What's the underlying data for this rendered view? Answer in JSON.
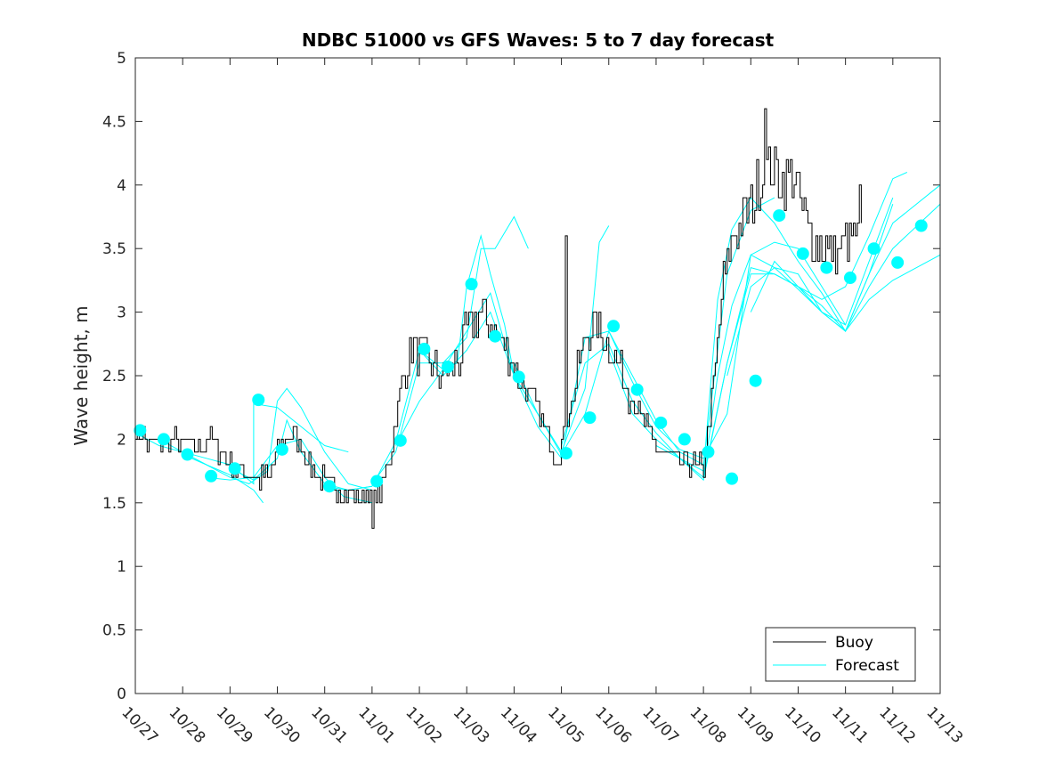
{
  "chart_data": {
    "type": "line",
    "title": "NDBC 51000 vs GFS Waves: 5 to 7 day forecast",
    "xlabel": "",
    "ylabel": "Wave height, m",
    "xlim": [
      0,
      17
    ],
    "ylim": [
      0,
      5
    ],
    "x_unit": "days since 10/27",
    "x_ticks": [
      0,
      1,
      2,
      3,
      4,
      5,
      6,
      7,
      8,
      9,
      10,
      11,
      12,
      13,
      14,
      15,
      16,
      17
    ],
    "x_tick_labels": [
      "10/27",
      "10/28",
      "10/29",
      "10/30",
      "10/31",
      "11/01",
      "11/02",
      "11/03",
      "11/04",
      "11/05",
      "11/06",
      "11/07",
      "11/08",
      "11/09",
      "11/10",
      "11/11",
      "11/12",
      "11/13"
    ],
    "y_ticks": [
      0,
      0.5,
      1,
      1.5,
      2,
      2.5,
      3,
      3.5,
      4,
      4.5,
      5
    ],
    "y_tick_labels": [
      "0",
      "0.5",
      "1",
      "1.5",
      "2",
      "2.5",
      "3",
      "3.5",
      "4",
      "4.5",
      "5"
    ],
    "colors": {
      "buoy": "#000000",
      "forecast": "#00ffff"
    },
    "legend": {
      "position": "bottom-right",
      "entries": [
        "Buoy",
        "Forecast"
      ]
    },
    "buoy_anchors": [
      [
        0.0,
        2.05
      ],
      [
        0.3,
        1.97
      ],
      [
        0.8,
        1.98
      ],
      [
        1.2,
        1.95
      ],
      [
        1.6,
        2.0
      ],
      [
        2.0,
        1.8
      ],
      [
        2.4,
        1.72
      ],
      [
        2.8,
        1.68
      ],
      [
        3.0,
        1.9
      ],
      [
        3.2,
        2.05
      ],
      [
        3.5,
        1.95
      ],
      [
        3.8,
        1.72
      ],
      [
        4.2,
        1.62
      ],
      [
        4.8,
        1.56
      ],
      [
        5.05,
        1.55
      ],
      [
        5.2,
        1.62
      ],
      [
        5.4,
        1.9
      ],
      [
        5.6,
        2.4
      ],
      [
        5.8,
        2.72
      ],
      [
        6.1,
        2.65
      ],
      [
        6.4,
        2.5
      ],
      [
        6.8,
        2.6
      ],
      [
        7.0,
        2.85
      ],
      [
        7.3,
        3.0
      ],
      [
        7.7,
        2.8
      ],
      [
        8.0,
        2.55
      ],
      [
        8.4,
        2.3
      ],
      [
        8.7,
        2.05
      ],
      [
        8.9,
        1.85
      ],
      [
        9.1,
        2.1
      ],
      [
        9.5,
        2.8
      ],
      [
        9.7,
        2.9
      ],
      [
        10.0,
        2.75
      ],
      [
        10.3,
        2.5
      ],
      [
        10.6,
        2.25
      ],
      [
        10.9,
        2.0
      ],
      [
        11.3,
        1.85
      ],
      [
        11.7,
        1.8
      ],
      [
        12.0,
        1.78
      ],
      [
        12.2,
        2.4
      ],
      [
        12.4,
        3.2
      ],
      [
        12.6,
        3.6
      ],
      [
        12.9,
        3.75
      ],
      [
        13.1,
        3.95
      ],
      [
        13.35,
        4.15
      ],
      [
        13.6,
        4.05
      ],
      [
        13.9,
        4.05
      ],
      [
        14.2,
        3.65
      ],
      [
        14.6,
        3.5
      ],
      [
        14.9,
        3.48
      ],
      [
        15.2,
        3.6
      ],
      [
        15.35,
        3.55
      ]
    ],
    "buoy_spikes": [
      [
        9.09,
        3.6
      ],
      [
        5.0,
        1.3
      ],
      [
        13.3,
        4.6
      ],
      [
        15.28,
        4.0
      ]
    ],
    "forecast_runs": [
      [
        [
          0,
          2.05
        ],
        [
          0.5,
          1.95
        ],
        [
          1.0,
          1.9
        ],
        [
          1.5,
          1.85
        ],
        [
          2.0,
          1.8
        ],
        [
          2.5,
          1.65
        ],
        [
          2.5,
          2.28
        ],
        [
          3.0,
          2.25
        ],
        [
          3.5,
          2.1
        ],
        [
          4.0,
          1.95
        ],
        [
          4.5,
          1.9
        ]
      ],
      [
        [
          0.5,
          2.0
        ],
        [
          1.0,
          1.9
        ],
        [
          1.5,
          1.8
        ],
        [
          2.0,
          1.72
        ],
        [
          2.5,
          1.6
        ],
        [
          2.7,
          1.5
        ]
      ],
      [
        [
          1.0,
          1.88
        ],
        [
          1.5,
          1.8
        ],
        [
          2.0,
          1.7
        ],
        [
          2.4,
          1.65
        ],
        [
          2.8,
          1.75
        ],
        [
          3.0,
          2.3
        ],
        [
          3.2,
          2.4
        ],
        [
          3.5,
          2.25
        ],
        [
          4.0,
          1.9
        ],
        [
          4.5,
          1.65
        ],
        [
          5.0,
          1.6
        ]
      ],
      [
        [
          1.5,
          1.7
        ],
        [
          2.0,
          1.68
        ],
        [
          2.5,
          1.7
        ],
        [
          3.0,
          1.95
        ],
        [
          3.5,
          2.0
        ],
        [
          4.0,
          1.7
        ],
        [
          4.4,
          1.55
        ],
        [
          5.0,
          1.5
        ]
      ],
      [
        [
          2.0,
          1.77
        ],
        [
          2.5,
          1.68
        ],
        [
          3.0,
          1.85
        ],
        [
          3.2,
          2.15
        ],
        [
          3.5,
          1.9
        ],
        [
          4.0,
          1.65
        ],
        [
          4.5,
          1.6
        ],
        [
          5.0,
          1.63
        ]
      ],
      [
        [
          4.0,
          1.63
        ],
        [
          4.5,
          1.6
        ],
        [
          5.0,
          1.63
        ],
        [
          5.5,
          1.98
        ],
        [
          6.0,
          2.7
        ],
        [
          6.5,
          2.55
        ],
        [
          6.8,
          2.6
        ],
        [
          7.0,
          3.2
        ],
        [
          7.3,
          3.6
        ],
        [
          7.5,
          3.3
        ],
        [
          7.8,
          2.9
        ],
        [
          8.0,
          2.5
        ],
        [
          8.5,
          2.2
        ]
      ],
      [
        [
          5.0,
          1.65
        ],
        [
          5.5,
          1.9
        ],
        [
          6.0,
          2.6
        ],
        [
          6.5,
          2.6
        ],
        [
          7.0,
          2.8
        ],
        [
          7.3,
          3.5
        ],
        [
          7.6,
          3.5
        ],
        [
          8.0,
          3.75
        ],
        [
          8.3,
          3.5
        ]
      ],
      [
        [
          5.5,
          1.95
        ],
        [
          6.0,
          2.3
        ],
        [
          6.5,
          2.55
        ],
        [
          7.0,
          2.85
        ],
        [
          7.5,
          3.15
        ],
        [
          8.0,
          2.5
        ],
        [
          8.5,
          2.2
        ],
        [
          9.0,
          1.9
        ],
        [
          9.5,
          2.4
        ],
        [
          9.8,
          3.55
        ],
        [
          10.0,
          3.68
        ]
      ],
      [
        [
          6.0,
          2.7
        ],
        [
          6.5,
          2.5
        ],
        [
          7.0,
          2.7
        ],
        [
          7.5,
          3.0
        ],
        [
          8.0,
          2.5
        ],
        [
          8.5,
          2.1
        ],
        [
          9.0,
          1.85
        ],
        [
          9.5,
          2.8
        ],
        [
          10.0,
          2.85
        ],
        [
          10.5,
          2.5
        ],
        [
          11.0,
          2.15
        ],
        [
          11.5,
          1.9
        ],
        [
          12.0,
          1.8
        ],
        [
          12.5,
          3.3
        ],
        [
          13.0,
          3.8
        ],
        [
          13.5,
          3.9
        ]
      ],
      [
        [
          8.0,
          2.6
        ],
        [
          8.5,
          2.2
        ],
        [
          9.0,
          1.88
        ],
        [
          9.5,
          2.2
        ],
        [
          10.0,
          2.85
        ],
        [
          10.5,
          2.45
        ],
        [
          11.0,
          2.1
        ],
        [
          11.5,
          1.92
        ],
        [
          12.0,
          1.85
        ],
        [
          12.5,
          2.2
        ],
        [
          13.0,
          3.45
        ],
        [
          13.5,
          3.55
        ],
        [
          14.0,
          3.5
        ],
        [
          14.5,
          3.2
        ],
        [
          15.0,
          2.9
        ]
      ],
      [
        [
          9.0,
          1.95
        ],
        [
          9.5,
          2.6
        ],
        [
          10.0,
          2.75
        ],
        [
          10.5,
          2.3
        ],
        [
          11.0,
          2.05
        ],
        [
          11.5,
          1.85
        ],
        [
          12.0,
          1.75
        ],
        [
          12.3,
          3.1
        ],
        [
          12.6,
          3.65
        ],
        [
          13.0,
          3.9
        ],
        [
          13.5,
          3.7
        ],
        [
          14.0,
          3.4
        ],
        [
          14.5,
          3.15
        ],
        [
          15.0,
          2.85
        ],
        [
          15.5,
          3.3
        ],
        [
          16.0,
          3.85
        ]
      ],
      [
        [
          10.0,
          2.7
        ],
        [
          10.5,
          2.2
        ],
        [
          11.0,
          2.0
        ],
        [
          11.5,
          1.85
        ],
        [
          12.0,
          1.7
        ],
        [
          12.3,
          2.5
        ],
        [
          12.6,
          3.05
        ],
        [
          13.0,
          3.45
        ],
        [
          13.5,
          3.35
        ],
        [
          14.0,
          3.3
        ],
        [
          14.5,
          3.0
        ],
        [
          15.0,
          2.9
        ],
        [
          15.5,
          3.4
        ],
        [
          16.0,
          3.9
        ]
      ],
      [
        [
          11.0,
          1.95
        ],
        [
          11.5,
          1.85
        ],
        [
          12.0,
          1.68
        ],
        [
          12.5,
          2.6
        ],
        [
          13.0,
          3.35
        ],
        [
          13.5,
          3.3
        ],
        [
          14.0,
          3.2
        ],
        [
          14.5,
          3.1
        ],
        [
          15.0,
          3.2
        ],
        [
          15.5,
          3.6
        ],
        [
          16.0,
          4.05
        ],
        [
          16.3,
          4.1
        ]
      ],
      [
        [
          12.0,
          1.7
        ],
        [
          12.5,
          2.6
        ],
        [
          13.0,
          3.3
        ],
        [
          13.5,
          3.3
        ],
        [
          14.0,
          3.2
        ],
        [
          14.5,
          3.05
        ],
        [
          15.0,
          2.85
        ],
        [
          15.5,
          3.3
        ],
        [
          16.0,
          3.7
        ],
        [
          17.0,
          4.0
        ]
      ],
      [
        [
          12.5,
          2.5
        ],
        [
          13.0,
          3.2
        ],
        [
          13.5,
          3.35
        ],
        [
          14.0,
          3.18
        ],
        [
          14.5,
          3.0
        ],
        [
          15.0,
          2.85
        ],
        [
          15.5,
          3.2
        ],
        [
          16.0,
          3.5
        ],
        [
          17.0,
          3.85
        ]
      ],
      [
        [
          13.0,
          3.0
        ],
        [
          13.5,
          3.4
        ],
        [
          14.0,
          3.2
        ],
        [
          14.5,
          3.0
        ],
        [
          15.0,
          2.85
        ],
        [
          15.5,
          3.1
        ],
        [
          16.0,
          3.25
        ],
        [
          17.0,
          3.45
        ]
      ]
    ],
    "forecast_points": [
      [
        0.1,
        2.07
      ],
      [
        0.6,
        2.0
      ],
      [
        1.1,
        1.88
      ],
      [
        1.6,
        1.71
      ],
      [
        2.1,
        1.77
      ],
      [
        2.6,
        2.31
      ],
      [
        3.1,
        1.92
      ],
      [
        4.1,
        1.63
      ],
      [
        5.1,
        1.67
      ],
      [
        5.6,
        1.99
      ],
      [
        6.1,
        2.71
      ],
      [
        6.6,
        2.57
      ],
      [
        7.1,
        3.22
      ],
      [
        7.6,
        2.81
      ],
      [
        8.1,
        2.49
      ],
      [
        9.1,
        1.89
      ],
      [
        9.6,
        2.17
      ],
      [
        10.1,
        2.89
      ],
      [
        10.6,
        2.39
      ],
      [
        11.1,
        2.13
      ],
      [
        11.6,
        2.0
      ],
      [
        12.1,
        1.9
      ],
      [
        12.6,
        1.69
      ],
      [
        13.1,
        2.46
      ],
      [
        13.6,
        3.76
      ],
      [
        14.1,
        3.46
      ],
      [
        14.6,
        3.35
      ],
      [
        15.1,
        3.27
      ],
      [
        15.6,
        3.5
      ],
      [
        16.1,
        3.39
      ],
      [
        16.6,
        3.68
      ]
    ]
  }
}
